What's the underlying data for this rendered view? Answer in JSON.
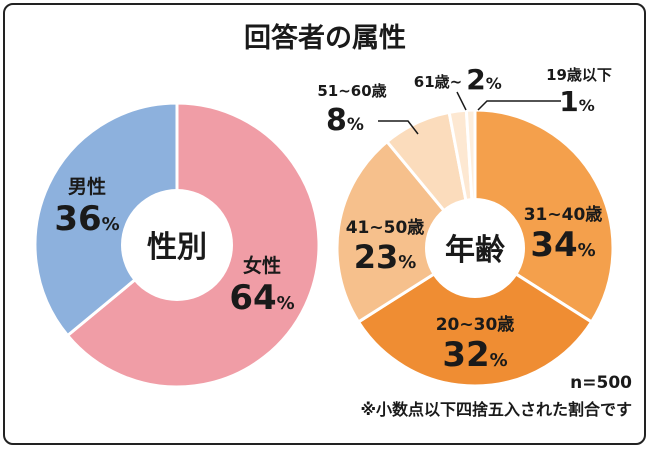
{
  "title": "回答者の属性",
  "note_n": "n=500",
  "note_rounding": "※小数点以下四捨五入された割合です",
  "colors": {
    "male": "#8db1dd",
    "female": "#f09da6",
    "age_20_30": "#ef8d33",
    "age_31_40": "#f4a04c",
    "age_41_50": "#f6c08c",
    "age_51_60": "#fbdcbc",
    "age_61": "#fde8d2",
    "age_19": "#fdeedd"
  },
  "chart_data": [
    {
      "type": "pie",
      "center_label": "性別",
      "slices": [
        {
          "label": "女性",
          "value": 64,
          "value_text": "64",
          "unit": "%"
        },
        {
          "label": "男性",
          "value": 36,
          "value_text": "36",
          "unit": "%"
        }
      ]
    },
    {
      "type": "pie",
      "center_label": "年齢",
      "slices": [
        {
          "label": "31~40歳",
          "value": 34,
          "value_text": "34",
          "unit": "%"
        },
        {
          "label": "20~30歳",
          "value": 32,
          "value_text": "32",
          "unit": "%"
        },
        {
          "label": "41~50歳",
          "value": 23,
          "value_text": "23",
          "unit": "%"
        },
        {
          "label": "51~60歳",
          "value": 8,
          "value_text": "8",
          "unit": "%"
        },
        {
          "label": "61歳~",
          "value": 2,
          "value_text": "2",
          "unit": "%"
        },
        {
          "label": "19歳以下",
          "value": 1,
          "value_text": "1",
          "unit": "%"
        }
      ]
    }
  ]
}
